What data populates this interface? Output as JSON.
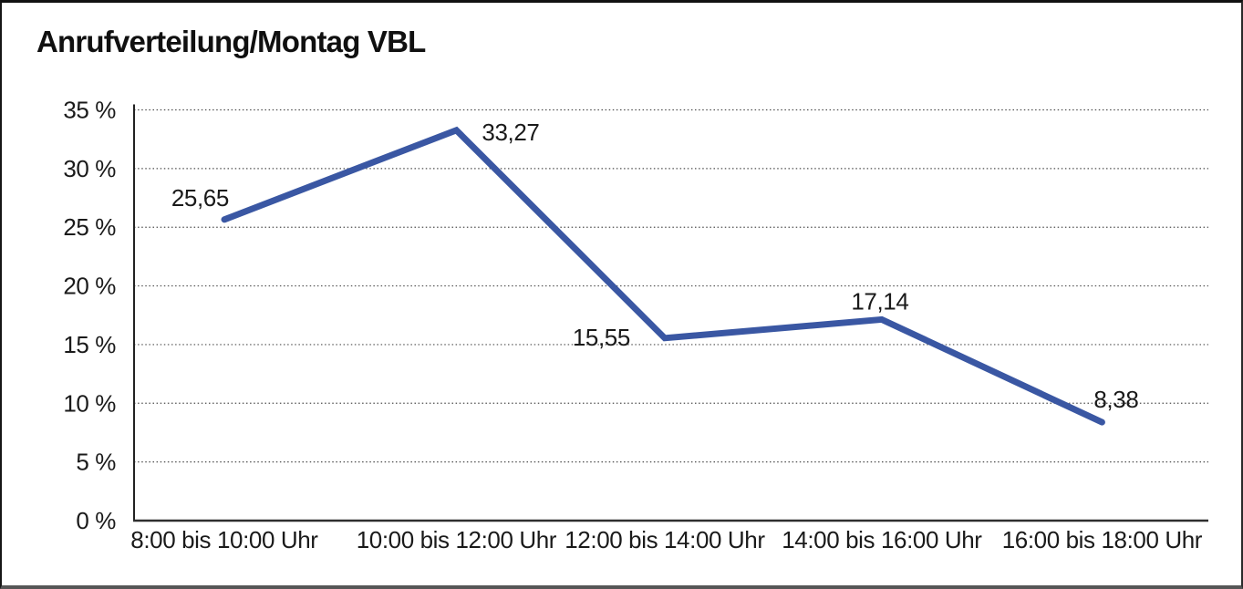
{
  "chart_data": {
    "type": "line",
    "title": "Anrufverteilung/Montag VBL",
    "categories": [
      "8:00 bis 10:00 Uhr",
      "10:00 bis 12:00 Uhr",
      "12:00 bis 14:00 Uhr",
      "14:00 bis 16:00 Uhr",
      "16:00 bis 18:00 Uhr"
    ],
    "values": [
      25.65,
      33.27,
      15.55,
      17.14,
      8.38
    ],
    "point_labels": [
      "25,65",
      "33,27",
      "15,55",
      "17,14",
      "8,38"
    ],
    "y_ticks": [
      "0 %",
      "5 %",
      "10 %",
      "15 %",
      "20 %",
      "25 %",
      "30 %",
      "35 %"
    ],
    "ylim": [
      0,
      35
    ],
    "y_step": 5,
    "xlabel": "",
    "ylabel": "",
    "grid": "horizontal-dotted",
    "legend": "none",
    "line_color": "#3A57A3",
    "text_color": "#1a1a1a",
    "grid_color": "#4f4f4f",
    "axis_color": "#222222"
  }
}
